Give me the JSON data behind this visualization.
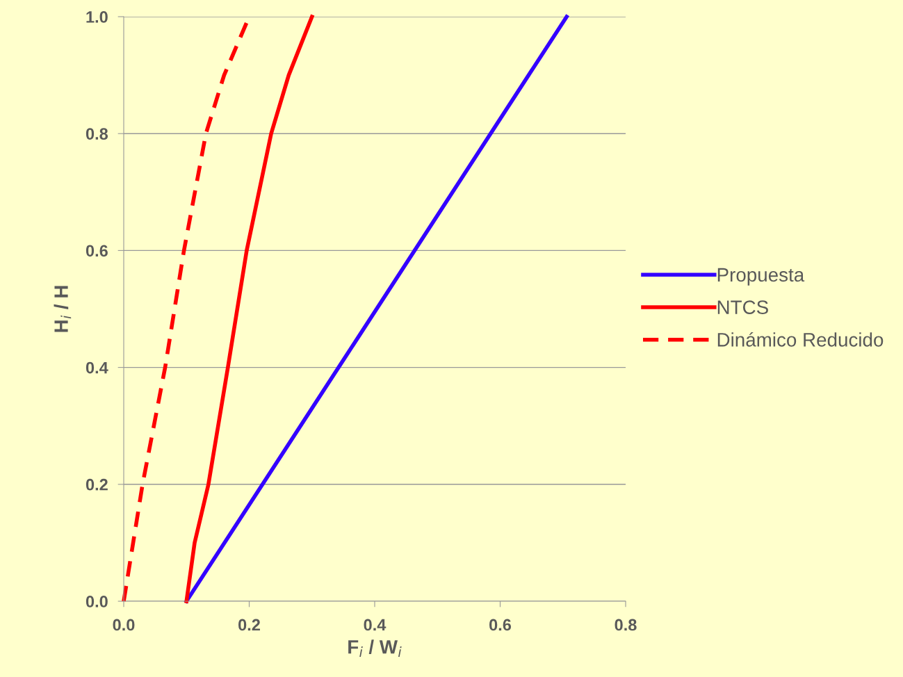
{
  "chart_data": {
    "type": "line",
    "xlabel": "F$_{i}$ / W$_{i}$",
    "ylabel": "H$_{i}$ / H",
    "xlim": [
      0,
      0.8
    ],
    "xticks": [
      {
        "value": 0,
        "label": "0.0"
      },
      0.2,
      0.4,
      0.6,
      0.8
    ],
    "ylim": [
      0,
      1
    ],
    "yticks": [
      {
        "value": 0,
        "label": "0.0"
      },
      0.2,
      0.4,
      0.6,
      0.8,
      {
        "value": 1,
        "label": "1.0"
      }
    ],
    "grid": "y",
    "legend": "right",
    "marker": "none",
    "series": [
      {
        "name": "Propuesta",
        "color": "#3300ff",
        "line_style": "solid",
        "x": [
          0.1,
          0.706
        ],
        "values": [
          0,
          1
        ]
      },
      {
        "name": "NTCS",
        "color": "#ff0000",
        "line_style": "solid",
        "x": [
          0.1,
          0.113,
          0.135,
          0.166,
          0.196,
          0.235,
          0.263,
          0.3
        ],
        "values": [
          0,
          0.1,
          0.2,
          0.4,
          0.6,
          0.8,
          0.9,
          1
        ]
      },
      {
        "name": "Dinámico Reducido",
        "color": "#ff0000",
        "line_style": "dashed",
        "x": [
          0,
          0.03,
          0.066,
          0.096,
          0.131,
          0.16,
          0.2
        ],
        "values": [
          0,
          0.2,
          0.4,
          0.6,
          0.8,
          0.9,
          1
        ]
      }
    ]
  }
}
